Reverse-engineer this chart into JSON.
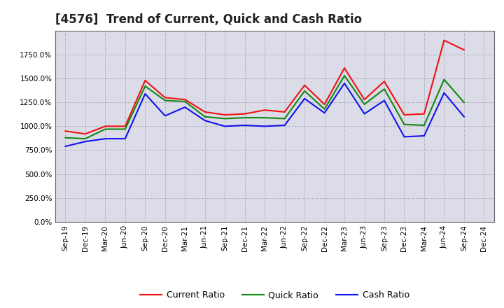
{
  "title": "[4576]  Trend of Current, Quick and Cash Ratio",
  "labels": [
    "Sep-19",
    "Dec-19",
    "Mar-20",
    "Jun-20",
    "Sep-20",
    "Dec-20",
    "Mar-21",
    "Jun-21",
    "Sep-21",
    "Dec-21",
    "Mar-22",
    "Jun-22",
    "Sep-22",
    "Dec-22",
    "Mar-23",
    "Jun-23",
    "Sep-23",
    "Dec-23",
    "Mar-24",
    "Jun-24",
    "Sep-24",
    "Dec-24"
  ],
  "current_ratio": [
    950,
    920,
    1000,
    1000,
    1480,
    1300,
    1280,
    1150,
    1120,
    1130,
    1170,
    1150,
    1430,
    1230,
    1610,
    1280,
    1470,
    1120,
    1130,
    1900,
    1800,
    null
  ],
  "quick_ratio": [
    880,
    870,
    970,
    970,
    1420,
    1270,
    1260,
    1100,
    1080,
    1090,
    1090,
    1080,
    1370,
    1180,
    1530,
    1230,
    1390,
    1020,
    1010,
    1490,
    1250,
    null
  ],
  "cash_ratio": [
    790,
    840,
    870,
    870,
    1340,
    1110,
    1200,
    1060,
    1000,
    1010,
    1000,
    1010,
    1290,
    1140,
    1450,
    1130,
    1270,
    890,
    900,
    1350,
    1100,
    null
  ],
  "ylim": [
    0,
    2000
  ],
  "yticks": [
    0,
    250,
    500,
    750,
    1000,
    1250,
    1500,
    1750
  ],
  "current_color": "#EE1111",
  "quick_color": "#118811",
  "cash_color": "#1111EE",
  "plot_bg_color": "#DCDCE8",
  "fig_bg_color": "#FFFFFF",
  "grid_color": "#888899",
  "title_fontsize": 12,
  "legend_fontsize": 9,
  "tick_fontsize": 7.5
}
